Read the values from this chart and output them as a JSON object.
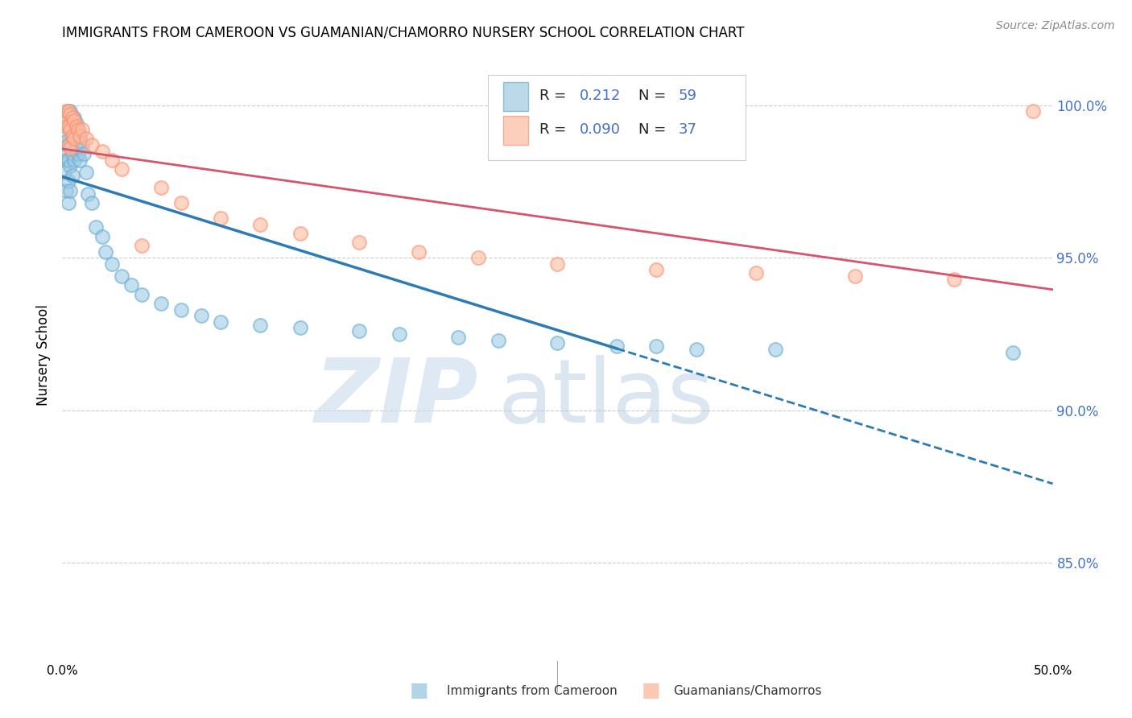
{
  "title": "IMMIGRANTS FROM CAMEROON VS GUAMANIAN/CHAMORRO NURSERY SCHOOL CORRELATION CHART",
  "source": "Source: ZipAtlas.com",
  "ylabel": "Nursery School",
  "x_min": 0.0,
  "x_max": 0.5,
  "y_min": 0.818,
  "y_max": 1.018,
  "y_ticks": [
    0.85,
    0.9,
    0.95,
    1.0
  ],
  "y_tick_labels": [
    "85.0%",
    "90.0%",
    "95.0%",
    "100.0%"
  ],
  "x_ticks": [
    0.0,
    0.1,
    0.2,
    0.3,
    0.4,
    0.5
  ],
  "x_tick_labels": [
    "0.0%",
    "",
    "",
    "",
    "",
    "50.0%"
  ],
  "blue_color": "#9ecae1",
  "blue_edge_color": "#6baed6",
  "pink_color": "#fcbba1",
  "pink_edge_color": "#fc9272",
  "blue_line_color": "#2c7bb6",
  "pink_line_color": "#d6546e",
  "grid_color": "#cccccc",
  "footer_blue": "Immigrants from Cameroon",
  "footer_pink": "Guamanians/Chamorros",
  "blue_x": [
    0.001,
    0.001,
    0.001,
    0.002,
    0.002,
    0.002,
    0.002,
    0.003,
    0.003,
    0.003,
    0.003,
    0.003,
    0.003,
    0.004,
    0.004,
    0.004,
    0.004,
    0.004,
    0.005,
    0.005,
    0.005,
    0.005,
    0.006,
    0.006,
    0.006,
    0.007,
    0.007,
    0.008,
    0.008,
    0.009,
    0.009,
    0.01,
    0.011,
    0.012,
    0.013,
    0.015,
    0.017,
    0.02,
    0.022,
    0.025,
    0.03,
    0.035,
    0.04,
    0.05,
    0.06,
    0.07,
    0.08,
    0.1,
    0.12,
    0.15,
    0.17,
    0.2,
    0.22,
    0.25,
    0.28,
    0.3,
    0.32,
    0.36,
    0.48
  ],
  "blue_y": [
    0.99,
    0.983,
    0.978,
    0.995,
    0.988,
    0.982,
    0.972,
    0.998,
    0.993,
    0.987,
    0.982,
    0.975,
    0.968,
    0.998,
    0.993,
    0.987,
    0.98,
    0.972,
    0.996,
    0.99,
    0.984,
    0.977,
    0.996,
    0.989,
    0.982,
    0.994,
    0.986,
    0.992,
    0.984,
    0.99,
    0.982,
    0.987,
    0.984,
    0.978,
    0.971,
    0.968,
    0.96,
    0.957,
    0.952,
    0.948,
    0.944,
    0.941,
    0.938,
    0.935,
    0.933,
    0.931,
    0.929,
    0.928,
    0.927,
    0.926,
    0.925,
    0.924,
    0.923,
    0.922,
    0.921,
    0.921,
    0.92,
    0.92,
    0.919
  ],
  "pink_x": [
    0.001,
    0.002,
    0.002,
    0.003,
    0.003,
    0.003,
    0.004,
    0.004,
    0.004,
    0.005,
    0.005,
    0.006,
    0.006,
    0.007,
    0.008,
    0.009,
    0.01,
    0.012,
    0.015,
    0.02,
    0.025,
    0.03,
    0.04,
    0.05,
    0.06,
    0.08,
    0.1,
    0.12,
    0.15,
    0.18,
    0.21,
    0.25,
    0.3,
    0.35,
    0.4,
    0.45,
    0.49
  ],
  "pink_y": [
    0.995,
    0.998,
    0.993,
    0.998,
    0.993,
    0.987,
    0.997,
    0.992,
    0.986,
    0.996,
    0.99,
    0.995,
    0.989,
    0.993,
    0.992,
    0.99,
    0.992,
    0.989,
    0.987,
    0.985,
    0.982,
    0.979,
    0.954,
    0.973,
    0.968,
    0.963,
    0.961,
    0.958,
    0.955,
    0.952,
    0.95,
    0.948,
    0.946,
    0.945,
    0.944,
    0.943,
    0.998
  ]
}
